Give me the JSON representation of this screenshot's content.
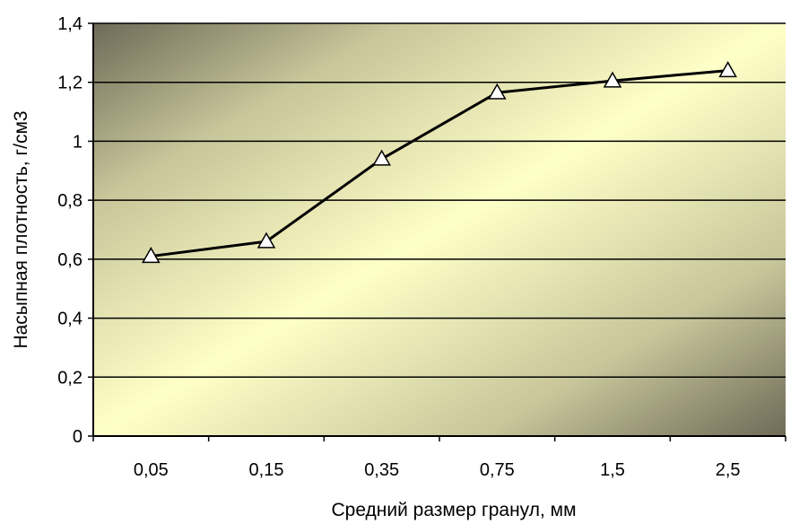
{
  "chart_data": {
    "type": "line",
    "title": "",
    "xlabel": "Средний размер гранул, мм",
    "ylabel": "Насыпная плотность, г/см3",
    "categories": [
      "0,05",
      "0,15",
      "0,35",
      "0,75",
      "1,5",
      "2,5"
    ],
    "series": [
      {
        "values": [
          0.61,
          0.66,
          0.94,
          1.165,
          1.205,
          1.24
        ]
      }
    ],
    "ylim": [
      0,
      1.4
    ],
    "yticks": [
      "0",
      "0,2",
      "0,4",
      "0,6",
      "0,8",
      "1",
      "1,2",
      "1,4"
    ],
    "grid": "horizontal",
    "legend": "none",
    "marker": "open-triangle",
    "colors": {
      "plot_bg_dark": "#6e6a58",
      "plot_bg_light": "#ffffc8",
      "line": "#000000",
      "marker_fill": "#ffffff"
    }
  }
}
